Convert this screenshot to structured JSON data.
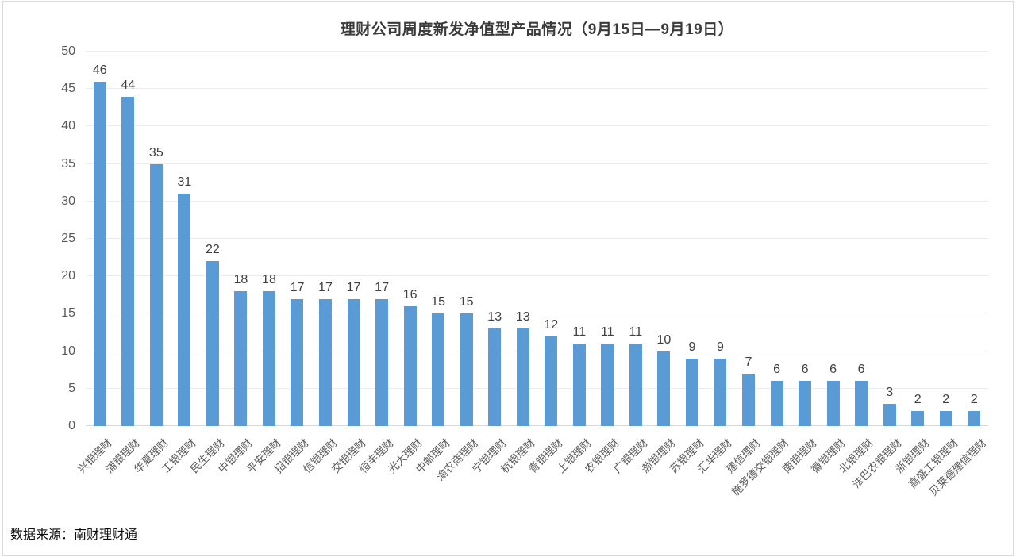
{
  "chart_data": {
    "type": "bar",
    "title": "理财公司周度新发净值型产品情况（9月15日—9月19日）",
    "categories": [
      "兴银理财",
      "浦银理财",
      "华夏理财",
      "工银理财",
      "民生理财",
      "中银理财",
      "平安理财",
      "招银理财",
      "信银理财",
      "交银理财",
      "恒丰理财",
      "光大理财",
      "中邮理财",
      "渝农商理财",
      "宁银理财",
      "杭银理财",
      "青银理财",
      "上银理财",
      "农银理财",
      "广银理财",
      "渤银理财",
      "苏银理财",
      "汇华理财",
      "建信理财",
      "施罗德交银理财",
      "南银理财",
      "徽银理财",
      "北银理财",
      "法巴农银理财",
      "浙银理财",
      "高盛工银理财",
      "贝莱德建信理财"
    ],
    "values": [
      46,
      44,
      35,
      31,
      22,
      18,
      18,
      17,
      17,
      17,
      17,
      16,
      15,
      15,
      13,
      13,
      12,
      11,
      11,
      11,
      10,
      9,
      9,
      7,
      6,
      6,
      6,
      6,
      3,
      2,
      2,
      2
    ],
    "xlabel": "",
    "ylabel": "",
    "ylim": [
      0,
      50
    ],
    "ytick_step": 5,
    "grid": true,
    "legend_position": "none",
    "value_labels": true,
    "bar_color": "#5b9bd5",
    "grid_color": "#ececec",
    "baseline_color": "#d9d9d9"
  },
  "source_note": "数据来源：南财理财通"
}
